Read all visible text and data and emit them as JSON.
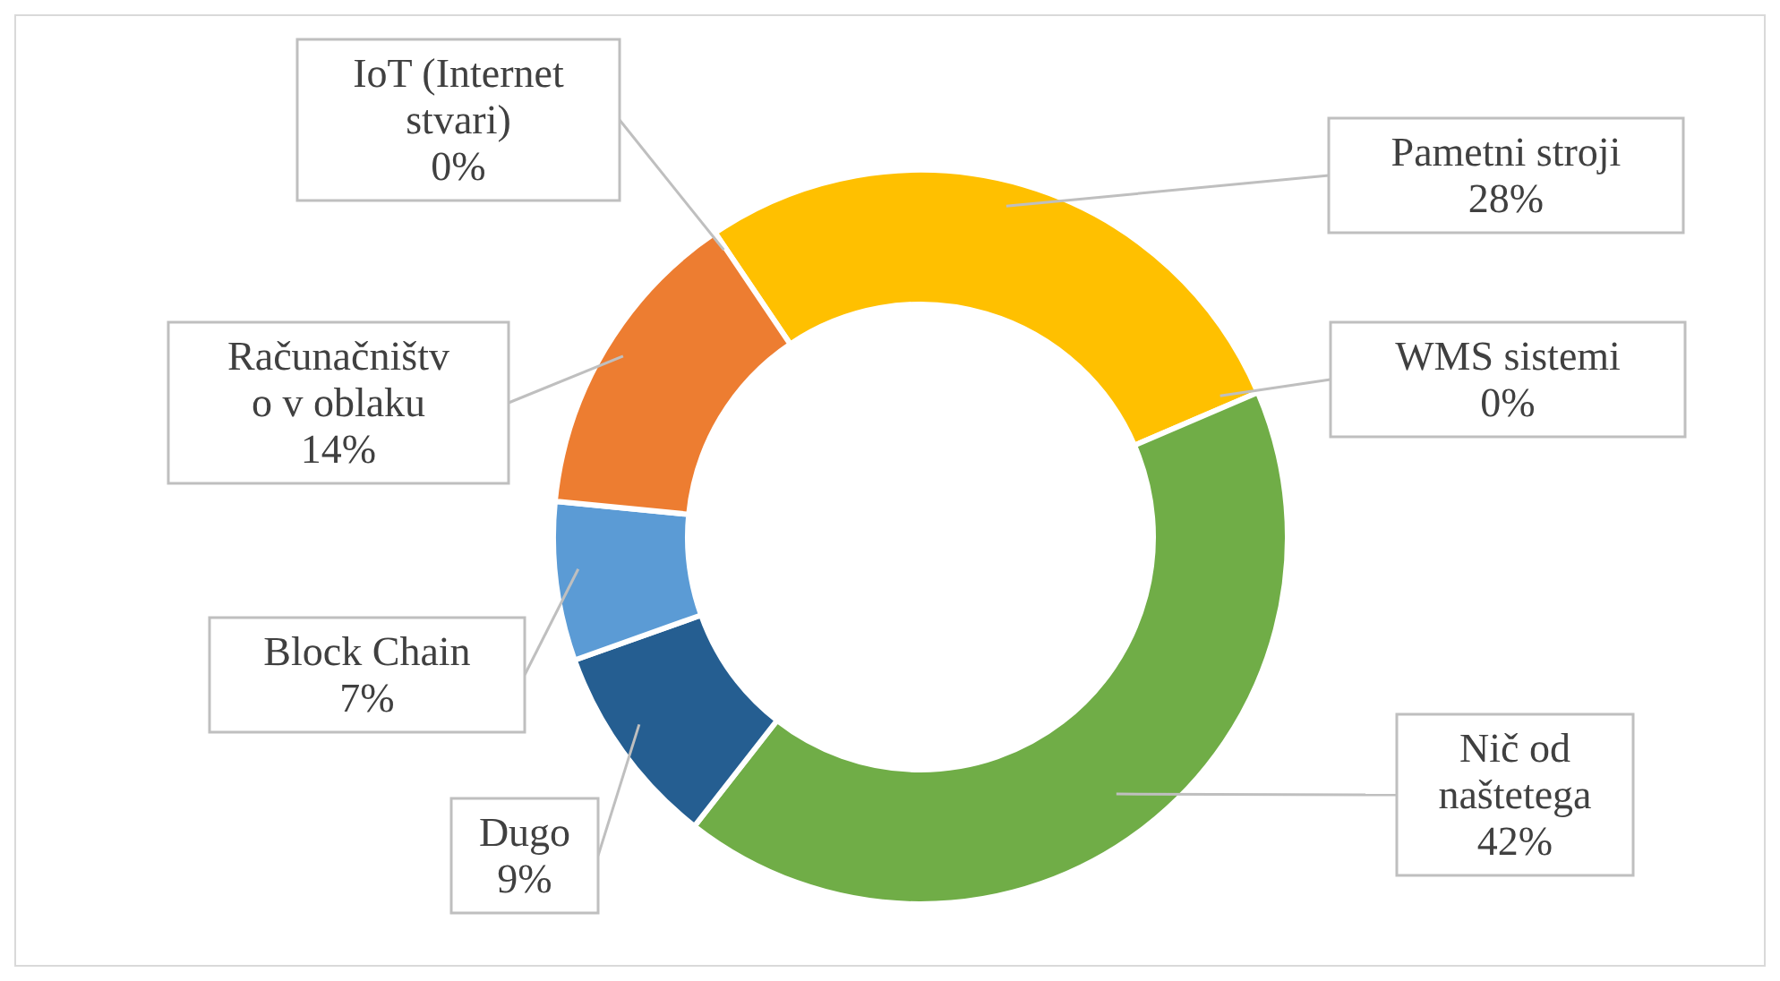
{
  "chart_data": {
    "type": "donut",
    "categories": [
      "Pametni stroji",
      "WMS sistemi",
      "Nič od naštetega",
      "Dugo",
      "Block Chain",
      "Računačništvo v oblaku",
      "IoT (Internet stvari)"
    ],
    "values": [
      28,
      0,
      42,
      9,
      7,
      14,
      0
    ],
    "value_labels": [
      "28%",
      "0%",
      "42%",
      "9%",
      "7%",
      "14%",
      "0%"
    ],
    "colors": [
      "#ffc000",
      "#a5a5a5",
      "#70ad47",
      "#255e91",
      "#5b9bd5",
      "#ed7d31",
      "#4472c4"
    ]
  }
}
